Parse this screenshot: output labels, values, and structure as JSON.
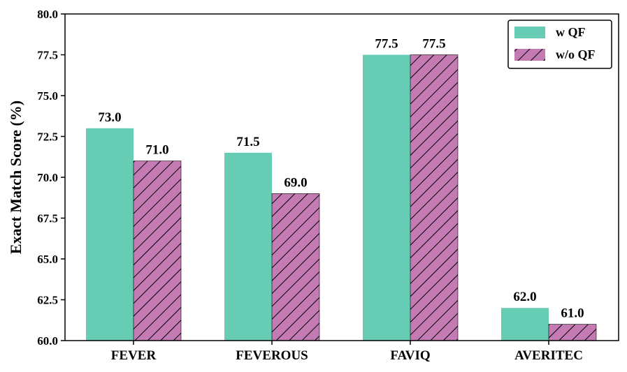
{
  "chart_data": {
    "type": "bar",
    "categories": [
      "FEVER",
      "FEVEROUS",
      "FAVIQ",
      "AVERITEC"
    ],
    "series": [
      {
        "name": "w QF",
        "values": [
          73.0,
          71.5,
          77.5,
          62.0
        ],
        "color": "#66cdb4",
        "pattern": "solid"
      },
      {
        "name": "w/o QF",
        "values": [
          71.0,
          69.0,
          77.5,
          61.0
        ],
        "color": "#c47bb4",
        "pattern": "diagonal-hatch"
      }
    ],
    "value_labels": [
      [
        "73.0",
        "71.5",
        "77.5",
        "62.0"
      ],
      [
        "71.0",
        "69.0",
        "77.5",
        "61.0"
      ]
    ],
    "title": "",
    "xlabel": "",
    "ylabel": "Exact Match Score (%)",
    "ylim": [
      60.0,
      80.0
    ],
    "yticks": [
      "60.0",
      "62.5",
      "65.0",
      "67.5",
      "70.0",
      "72.5",
      "75.0",
      "77.5",
      "80.0"
    ],
    "grid": false,
    "legend": {
      "position": "top-right"
    }
  }
}
